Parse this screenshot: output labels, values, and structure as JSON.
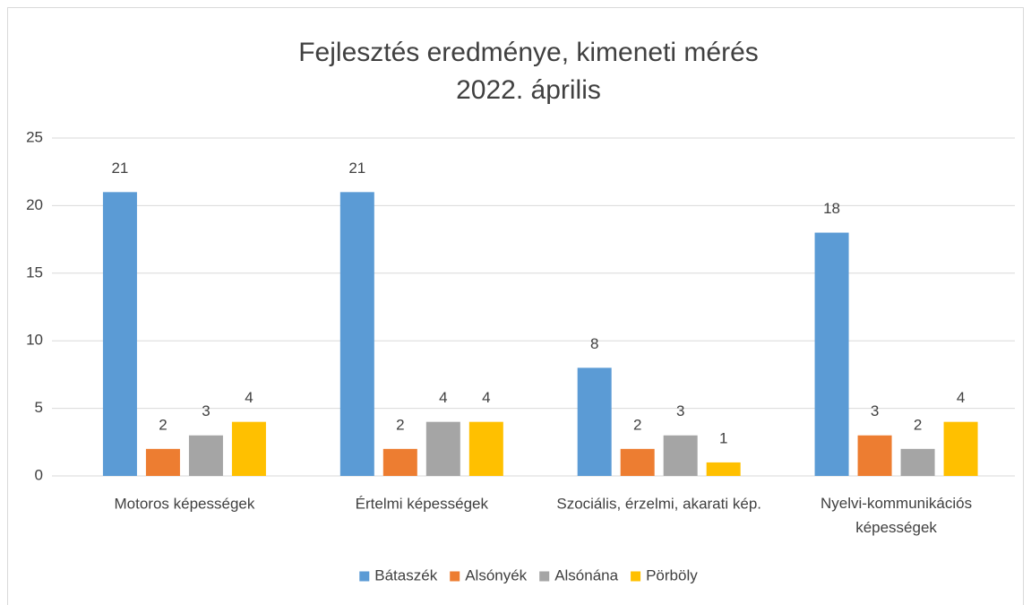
{
  "chart_data": {
    "type": "bar",
    "title": "Fejlesztés eredménye, kimeneti mérés",
    "subtitle": "2022. április",
    "categories": [
      "Motoros képességek",
      "Értelmi képességek",
      "Szociális, érzelmi, akarati kép.",
      "Nyelvi-kommunikációs képességek"
    ],
    "series": [
      {
        "name": "Bátaszék",
        "color": "#5b9bd5",
        "values": [
          21,
          21,
          8,
          18
        ]
      },
      {
        "name": "Alsónyék",
        "color": "#ed7d31",
        "values": [
          2,
          2,
          2,
          3
        ]
      },
      {
        "name": "Alsónána",
        "color": "#a5a5a5",
        "values": [
          3,
          4,
          3,
          2
        ]
      },
      {
        "name": "Pörböly",
        "color": "#ffc000",
        "values": [
          4,
          4,
          1,
          4
        ]
      }
    ],
    "ylim": [
      0,
      25
    ],
    "yticks": [
      0,
      5,
      10,
      15,
      20,
      25
    ],
    "grid": true,
    "legend": "bottom"
  }
}
